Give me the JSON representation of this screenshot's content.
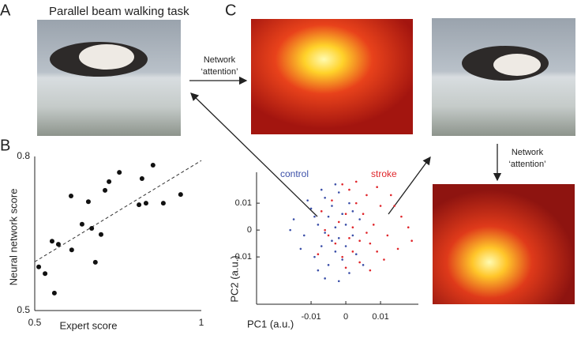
{
  "panel_labels": {
    "a": "A",
    "b": "B",
    "c": "C"
  },
  "task_title": "Parallel beam walking task",
  "arrow_labels": [
    [
      "Network",
      "‘attention’"
    ],
    [
      "Network",
      "‘attention’"
    ]
  ],
  "chart_data": [
    {
      "type": "scatter",
      "xlabel": "Expert score",
      "ylabel": "Neural network score",
      "xlim": [
        0.5,
        1
      ],
      "ylim": [
        0.5,
        0.8
      ],
      "xticks": [
        0.5,
        1
      ],
      "yticks": [
        0.5,
        0.8
      ],
      "series": [
        {
          "color": "#111111",
          "x": [
            0.512,
            0.531,
            0.552,
            0.559,
            0.571,
            0.609,
            0.611,
            0.642,
            0.661,
            0.671,
            0.682,
            0.699,
            0.711,
            0.723,
            0.754,
            0.813,
            0.822,
            0.834,
            0.855,
            0.886,
            0.938
          ],
          "values": [
            0.585,
            0.572,
            0.635,
            0.534,
            0.629,
            0.723,
            0.618,
            0.668,
            0.712,
            0.66,
            0.594,
            0.648,
            0.734,
            0.751,
            0.769,
            0.706,
            0.757,
            0.709,
            0.783,
            0.709,
            0.726
          ]
        }
      ],
      "trend_line": {
        "x": [
          0.5,
          1
        ],
        "y": [
          0.595,
          0.792
        ],
        "dashed": true
      }
    },
    {
      "type": "scatter",
      "xlabel": "PC1 (a.u.)",
      "ylabel": "PC2 (a.u.)",
      "xlim": [
        -0.0257,
        0.0209
      ],
      "ylim": [
        -0.0276,
        0.0215
      ],
      "xticks": [
        -0.01,
        0,
        0.01
      ],
      "yticks": [
        -0.01,
        0,
        0.01
      ],
      "series": [
        {
          "name": "control",
          "color": "#3b4fa8",
          "x": [
            -0.015,
            -0.012,
            -0.01,
            -0.009,
            -0.008,
            -0.007,
            -0.006,
            -0.006,
            -0.005,
            -0.005,
            -0.004,
            -0.004,
            -0.003,
            -0.003,
            -0.002,
            -0.002,
            -0.001,
            -0.001,
            0,
            0,
            0.001,
            0.001,
            0.002,
            0.003,
            0.004,
            -0.011,
            -0.013,
            -0.008,
            -0.007,
            -0.002,
            0.005,
            -0.016,
            -0.009,
            -0.003,
            0.002,
            -0.006
          ],
          "values": [
            0.004,
            -0.002,
            0.008,
            -0.01,
            0.002,
            -0.006,
            0.012,
            -0.001,
            0.005,
            -0.013,
            -0.004,
            0.009,
            0.001,
            -0.008,
            0.014,
            -0.003,
            0.006,
            -0.011,
            0.002,
            -0.006,
            -0.016,
            0.01,
            -0.002,
            -0.009,
            0.004,
            0.011,
            -0.007,
            -0.015,
            0.015,
            -0.019,
            -0.013,
            0,
            0.005,
            0.017,
            0.007,
            -0.018
          ]
        },
        {
          "name": "stroke",
          "color": "#e0262b",
          "x": [
            0.016,
            0.012,
            0.01,
            0.009,
            0.008,
            0.007,
            0.006,
            0.006,
            0.005,
            0.004,
            0.004,
            0.003,
            0.002,
            0.002,
            0.001,
            0.001,
            0,
            -0.001,
            -0.002,
            -0.003,
            -0.004,
            -0.005,
            -0.007,
            -0.008,
            0.014,
            0.018,
            0.011,
            0.013,
            0.003,
            0.007,
            -0.001,
            0.019,
            0.015,
            0.009,
            -0.006,
            0
          ],
          "values": [
            0.005,
            -0.002,
            0.009,
            -0.008,
            0.002,
            -0.005,
            0.013,
            -0.001,
            0.006,
            -0.012,
            -0.004,
            0.01,
            0.001,
            -0.008,
            0.015,
            -0.003,
            0.006,
            -0.01,
            0.003,
            -0.005,
            0.011,
            -0.002,
            0.007,
            -0.009,
            0.009,
            0.001,
            -0.011,
            0.013,
            0.018,
            -0.015,
            0.017,
            -0.004,
            -0.007,
            0.016,
            0,
            -0.014
          ]
        }
      ]
    }
  ]
}
